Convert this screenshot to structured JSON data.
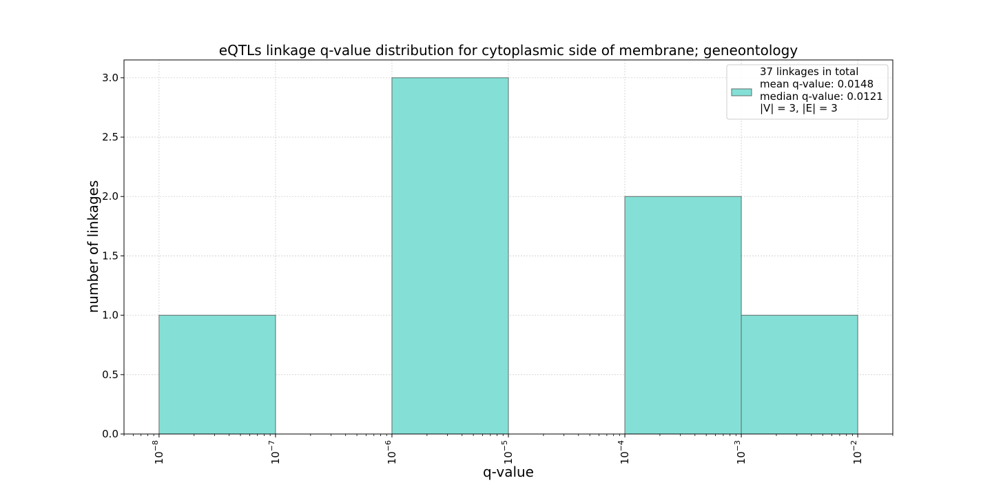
{
  "chart_data": {
    "type": "bar",
    "title": "eQTLs linkage q-value distribution for cytoplasmic side of membrane; geneontology",
    "xlabel": "q-value",
    "ylabel": "number of linkages",
    "x_scale": "log",
    "xlim": [
      5e-09,
      0.02
    ],
    "ylim": [
      0,
      3.15
    ],
    "grid": true,
    "bins": [
      {
        "start": 1e-08,
        "end": 1e-07,
        "count": 1
      },
      {
        "start": 1e-07,
        "end": 1e-06,
        "count": 0
      },
      {
        "start": 1e-06,
        "end": 1e-05,
        "count": 3
      },
      {
        "start": 1e-05,
        "end": 0.0001,
        "count": 0
      },
      {
        "start": 0.0001,
        "end": 0.001,
        "count": 2
      },
      {
        "start": 0.001,
        "end": 0.01,
        "count": 1
      }
    ],
    "x_ticks": [
      {
        "value": 1e-08,
        "base": "10",
        "exp": "−8"
      },
      {
        "value": 1e-07,
        "base": "10",
        "exp": "−7"
      },
      {
        "value": 1e-06,
        "base": "10",
        "exp": "−6"
      },
      {
        "value": 1e-05,
        "base": "10",
        "exp": "−5"
      },
      {
        "value": 0.0001,
        "base": "10",
        "exp": "−4"
      },
      {
        "value": 0.001,
        "base": "10",
        "exp": "−3"
      },
      {
        "value": 0.01,
        "base": "10",
        "exp": "−2"
      }
    ],
    "y_ticks": [
      {
        "value": 0,
        "label": "0.0"
      },
      {
        "value": 0.5,
        "label": "0.5"
      },
      {
        "value": 1,
        "label": "1.0"
      },
      {
        "value": 1.5,
        "label": "1.5"
      },
      {
        "value": 2,
        "label": "2.0"
      },
      {
        "value": 2.5,
        "label": "2.5"
      },
      {
        "value": 3,
        "label": "3.0"
      }
    ],
    "legend": {
      "position": "top-right",
      "lines": [
        "37 linkages in total",
        "mean q-value: 0.0148",
        "median q-value: 0.0121",
        "|V| = 3, |E| = 3"
      ]
    },
    "colors": {
      "bar_fill": "#84e0d6",
      "bar_edge": "#5f6b68",
      "grid": "#cccccc",
      "axis": "#000000"
    }
  }
}
